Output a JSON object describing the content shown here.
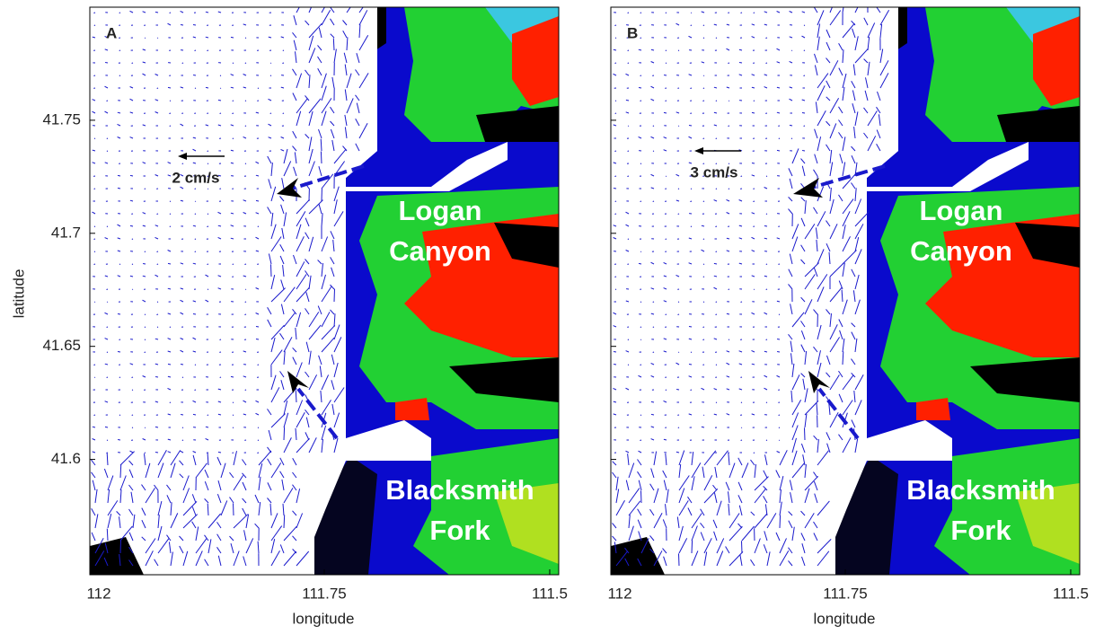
{
  "axes": {
    "xlim": [
      112.01,
      111.49
    ],
    "ylim": [
      41.549,
      41.8
    ],
    "xticks": [
      112,
      111.75,
      111.5
    ],
    "yticks": [
      41.6,
      41.65,
      41.7,
      41.75
    ]
  },
  "panels": [
    {
      "label": "A",
      "scale": "2 cm/s",
      "places": [
        [
          "Logan",
          "Canyon"
        ],
        [
          "Blacksmith",
          "Fork"
        ]
      ],
      "xlabel": "longitude",
      "ylabel": "latitude"
    },
    {
      "label": "B",
      "scale": "3 cm/s",
      "places": [
        [
          "Logan",
          "Canyon"
        ],
        [
          "Blacksmith",
          "Fork"
        ]
      ],
      "xlabel": "longitude"
    }
  ]
}
